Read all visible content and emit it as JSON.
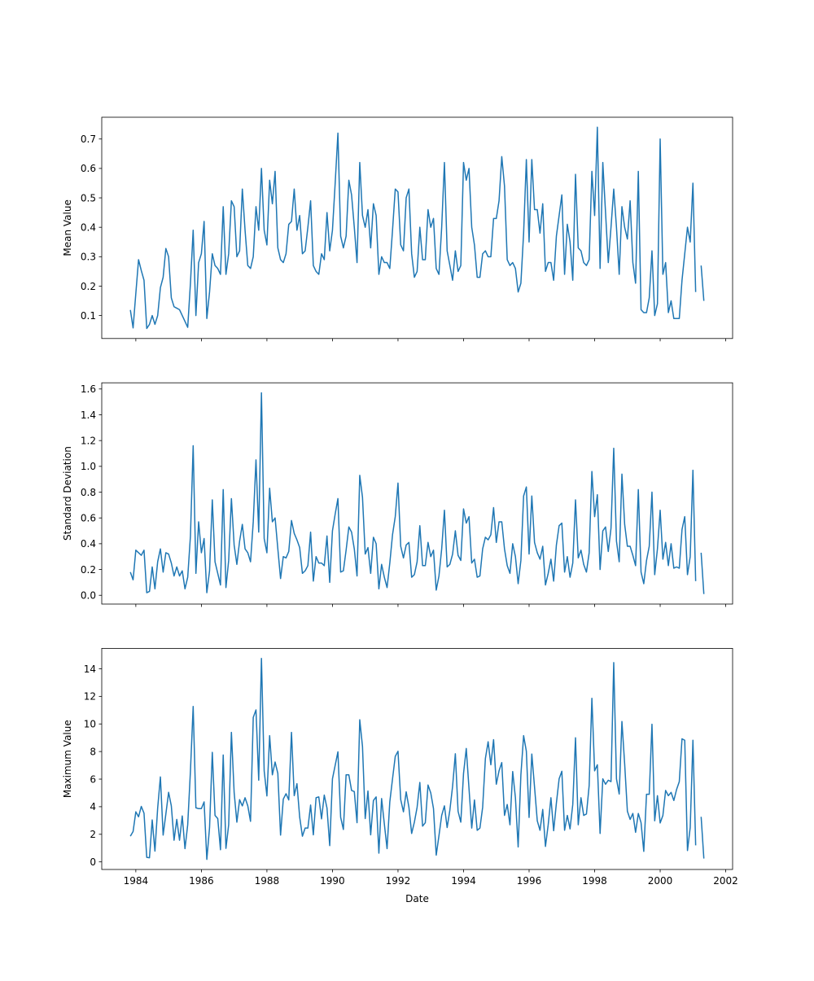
{
  "chart_data": {
    "type": "line",
    "layout": "3 stacked subplots, shared x axis",
    "line_color": "#1f77b4",
    "x": {
      "label": "Date",
      "start_decimal_year": 1983.833,
      "step": "monthly",
      "lim": [
        1982.96,
        2002.21
      ],
      "ticks": [
        1984,
        1986,
        1988,
        1990,
        1992,
        1994,
        1996,
        1998,
        2000,
        2002
      ]
    },
    "subplots": [
      {
        "ylabel": "Mean Value",
        "ylim": [
          0.022,
          0.774
        ],
        "yticks": [
          0.1,
          0.2,
          0.3,
          0.4,
          0.5,
          0.6,
          0.7
        ],
        "tick_labels": [
          "0.1",
          "0.2",
          "0.3",
          "0.4",
          "0.5",
          "0.6",
          "0.7"
        ],
        "values": [
          0.119,
          0.058,
          0.175,
          0.29,
          0.253,
          0.22,
          0.056,
          0.07,
          0.1,
          0.07,
          0.1,
          0.195,
          0.23,
          0.328,
          0.3,
          0.16,
          0.13,
          0.125,
          0.12,
          0.1,
          0.08,
          0.06,
          0.21,
          0.39,
          0.1,
          0.28,
          0.31,
          0.42,
          0.09,
          0.18,
          0.31,
          0.27,
          0.26,
          0.24,
          0.47,
          0.24,
          0.31,
          0.49,
          0.47,
          0.3,
          0.32,
          0.53,
          0.39,
          0.27,
          0.26,
          0.3,
          0.47,
          0.39,
          0.6,
          0.39,
          0.34,
          0.56,
          0.48,
          0.59,
          0.33,
          0.29,
          0.28,
          0.31,
          0.41,
          0.42,
          0.53,
          0.39,
          0.44,
          0.31,
          0.32,
          0.4,
          0.49,
          0.27,
          0.25,
          0.24,
          0.31,
          0.29,
          0.45,
          0.32,
          0.39,
          0.55,
          0.72,
          0.37,
          0.33,
          0.37,
          0.56,
          0.51,
          0.4,
          0.28,
          0.62,
          0.44,
          0.4,
          0.46,
          0.33,
          0.48,
          0.44,
          0.24,
          0.3,
          0.28,
          0.28,
          0.26,
          0.39,
          0.53,
          0.52,
          0.34,
          0.32,
          0.5,
          0.53,
          0.31,
          0.23,
          0.25,
          0.4,
          0.29,
          0.29,
          0.46,
          0.4,
          0.43,
          0.26,
          0.24,
          0.4,
          0.62,
          0.32,
          0.27,
          0.22,
          0.32,
          0.25,
          0.27,
          0.62,
          0.56,
          0.6,
          0.4,
          0.34,
          0.23,
          0.23,
          0.31,
          0.32,
          0.3,
          0.3,
          0.43,
          0.43,
          0.49,
          0.64,
          0.54,
          0.29,
          0.27,
          0.28,
          0.26,
          0.18,
          0.21,
          0.38,
          0.63,
          0.35,
          0.63,
          0.46,
          0.46,
          0.38,
          0.48,
          0.25,
          0.28,
          0.28,
          0.22,
          0.37,
          0.44,
          0.51,
          0.24,
          0.41,
          0.35,
          0.22,
          0.58,
          0.33,
          0.32,
          0.28,
          0.27,
          0.29,
          0.59,
          0.44,
          0.74,
          0.26,
          0.62,
          0.45,
          0.28,
          0.4,
          0.53,
          0.4,
          0.24,
          0.47,
          0.4,
          0.36,
          0.49,
          0.28,
          0.21,
          0.59,
          0.12,
          0.11,
          0.11,
          0.16,
          0.32,
          0.1,
          0.14,
          0.7,
          0.24,
          0.28,
          0.11,
          0.15,
          0.09,
          0.09,
          0.09,
          0.22,
          0.31,
          0.4,
          0.35,
          0.55,
          0.18,
          null,
          0.27,
          0.15
        ]
      },
      {
        "ylabel": "Standard Deviation",
        "ylim": [
          -0.068,
          1.648
        ],
        "yticks": [
          0.0,
          0.2,
          0.4,
          0.6,
          0.8,
          1.0,
          1.2,
          1.4,
          1.6
        ],
        "tick_labels": [
          "0.0",
          "0.2",
          "0.4",
          "0.6",
          "0.8",
          "1.0",
          "1.2",
          "1.4",
          "1.6"
        ],
        "values": [
          0.18,
          0.12,
          0.35,
          0.33,
          0.31,
          0.35,
          0.02,
          0.03,
          0.22,
          0.05,
          0.26,
          0.36,
          0.18,
          0.33,
          0.32,
          0.25,
          0.15,
          0.22,
          0.15,
          0.19,
          0.05,
          0.14,
          0.46,
          1.16,
          0.17,
          0.57,
          0.33,
          0.44,
          0.02,
          0.19,
          0.74,
          0.26,
          0.17,
          0.08,
          0.82,
          0.06,
          0.27,
          0.75,
          0.39,
          0.24,
          0.42,
          0.55,
          0.36,
          0.33,
          0.26,
          0.57,
          1.05,
          0.49,
          1.57,
          0.44,
          0.33,
          0.83,
          0.57,
          0.6,
          0.36,
          0.13,
          0.3,
          0.29,
          0.34,
          0.58,
          0.48,
          0.43,
          0.37,
          0.17,
          0.19,
          0.23,
          0.49,
          0.11,
          0.3,
          0.25,
          0.25,
          0.23,
          0.46,
          0.1,
          0.5,
          0.63,
          0.75,
          0.18,
          0.19,
          0.35,
          0.53,
          0.49,
          0.36,
          0.15,
          0.93,
          0.76,
          0.32,
          0.37,
          0.17,
          0.45,
          0.4,
          0.05,
          0.24,
          0.14,
          0.06,
          0.25,
          0.47,
          0.61,
          0.87,
          0.38,
          0.29,
          0.39,
          0.41,
          0.14,
          0.16,
          0.26,
          0.54,
          0.23,
          0.23,
          0.41,
          0.3,
          0.35,
          0.04,
          0.15,
          0.36,
          0.66,
          0.22,
          0.24,
          0.32,
          0.5,
          0.31,
          0.27,
          0.67,
          0.56,
          0.61,
          0.25,
          0.28,
          0.14,
          0.15,
          0.36,
          0.45,
          0.43,
          0.47,
          0.68,
          0.41,
          0.57,
          0.57,
          0.36,
          0.23,
          0.17,
          0.4,
          0.3,
          0.09,
          0.27,
          0.77,
          0.84,
          0.32,
          0.77,
          0.41,
          0.33,
          0.28,
          0.38,
          0.08,
          0.17,
          0.28,
          0.11,
          0.39,
          0.54,
          0.56,
          0.18,
          0.3,
          0.14,
          0.25,
          0.74,
          0.29,
          0.35,
          0.24,
          0.18,
          0.33,
          0.96,
          0.61,
          0.78,
          0.2,
          0.5,
          0.53,
          0.34,
          0.52,
          1.14,
          0.42,
          0.26,
          0.94,
          0.55,
          0.38,
          0.38,
          0.31,
          0.23,
          0.82,
          0.18,
          0.09,
          0.27,
          0.38,
          0.8,
          0.16,
          0.36,
          0.66,
          0.28,
          0.41,
          0.23,
          0.4,
          0.21,
          0.22,
          0.21,
          0.51,
          0.61,
          0.16,
          0.3,
          0.97,
          0.11,
          null,
          0.33,
          0.01
        ]
      },
      {
        "ylabel": "Maximum Value",
        "ylim": [
          -0.55,
          15.48
        ],
        "yticks": [
          0,
          2,
          4,
          6,
          8,
          10,
          12,
          14
        ],
        "tick_labels": [
          "0",
          "2",
          "4",
          "6",
          "8",
          "10",
          "12",
          "14"
        ],
        "values": [
          1.86,
          2.2,
          3.63,
          3.27,
          4.02,
          3.53,
          0.33,
          0.3,
          3.04,
          0.78,
          3.9,
          6.16,
          1.94,
          3.47,
          5.04,
          4.06,
          1.57,
          3.08,
          1.57,
          3.33,
          0.96,
          2.69,
          6.6,
          11.27,
          3.92,
          3.86,
          3.86,
          4.35,
          0.18,
          2.49,
          7.94,
          3.37,
          3.14,
          0.88,
          7.75,
          0.98,
          2.69,
          9.39,
          5.04,
          2.88,
          4.51,
          4.06,
          4.65,
          4.06,
          2.94,
          10.47,
          11.02,
          5.92,
          14.75,
          6.6,
          4.78,
          9.15,
          6.31,
          7.24,
          6.41,
          1.94,
          4.55,
          4.94,
          4.49,
          9.39,
          4.8,
          5.67,
          3.24,
          1.86,
          2.45,
          2.45,
          4.12,
          1.96,
          4.65,
          4.71,
          3.12,
          4.84,
          3.9,
          1.18,
          6.02,
          7.0,
          7.98,
          3.24,
          2.35,
          6.31,
          6.31,
          5.18,
          5.1,
          2.84,
          10.3,
          8.37,
          3.14,
          5.14,
          1.96,
          4.45,
          4.71,
          0.63,
          4.59,
          2.75,
          0.96,
          4.35,
          6.02,
          7.65,
          8.02,
          4.51,
          3.63,
          5.08,
          3.96,
          2.06,
          2.88,
          3.96,
          5.76,
          2.59,
          2.84,
          5.57,
          5.0,
          3.86,
          0.49,
          1.9,
          3.37,
          4.06,
          2.49,
          3.76,
          5.49,
          7.84,
          3.67,
          2.88,
          6.41,
          8.22,
          5.33,
          2.45,
          4.49,
          2.29,
          2.45,
          3.96,
          7.49,
          8.71,
          7.04,
          8.86,
          5.63,
          6.6,
          7.2,
          3.37,
          4.16,
          2.69,
          6.55,
          4.65,
          1.08,
          6.31,
          9.15,
          8.02,
          3.22,
          7.82,
          5.43,
          2.98,
          2.29,
          3.8,
          1.12,
          2.69,
          4.65,
          2.26,
          4.26,
          6.02,
          6.57,
          2.29,
          3.37,
          2.39,
          4.16,
          9.0,
          2.69,
          4.65,
          3.37,
          3.47,
          5.53,
          11.86,
          6.6,
          7.04,
          2.06,
          6.02,
          5.63,
          5.92,
          5.82,
          14.45,
          6.02,
          4.92,
          10.18,
          7.1,
          3.67,
          3.08,
          3.51,
          2.14,
          3.51,
          2.84,
          0.76,
          4.9,
          4.9,
          9.98,
          2.98,
          4.8,
          2.82,
          3.37,
          5.18,
          4.8,
          5.04,
          4.45,
          5.24,
          5.82,
          8.92,
          8.82,
          0.82,
          2.49,
          8.82,
          1.2,
          null,
          3.27,
          0.24
        ]
      }
    ]
  }
}
